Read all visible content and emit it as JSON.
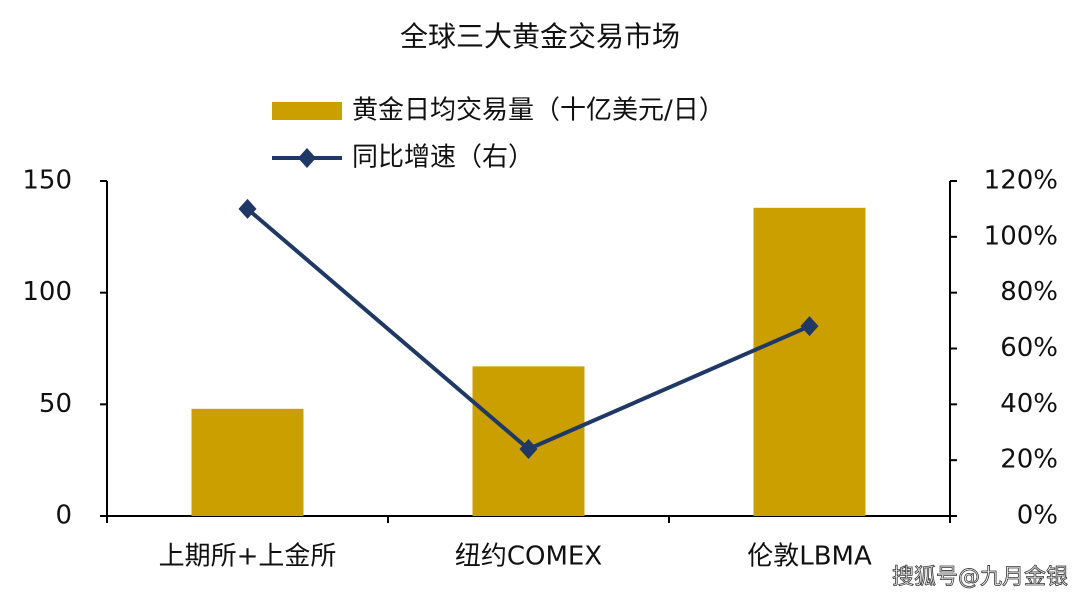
{
  "chart_data": {
    "type": "combo",
    "title": "全球三大黄金交易市场",
    "categories": [
      "上期所+上金所",
      "纽约COMEX",
      "伦敦LBMA"
    ],
    "series": [
      {
        "name": "黄金日均交易量（十亿美元/日）",
        "type": "bar",
        "color": "#cc9f00",
        "values": [
          48,
          67,
          138
        ]
      },
      {
        "name": "同比增速（右）",
        "type": "line",
        "color": "#1f3864",
        "axis": "y2",
        "values": [
          110,
          24,
          68
        ]
      }
    ],
    "ylim": [
      0,
      150
    ],
    "yticks": [
      0,
      50,
      100,
      150
    ],
    "y2lim": [
      0,
      120
    ],
    "y2ticks": [
      {
        "value": 0,
        "label": "0%"
      },
      {
        "value": 20,
        "label": "20%"
      },
      {
        "value": 40,
        "label": "40%"
      },
      {
        "value": 60,
        "label": "60%"
      },
      {
        "value": 80,
        "label": "80%"
      },
      {
        "value": 100,
        "label": "100%"
      },
      {
        "value": 120,
        "label": "120%"
      }
    ],
    "legend": "top",
    "watermark": "搜狐号@九月金银"
  }
}
